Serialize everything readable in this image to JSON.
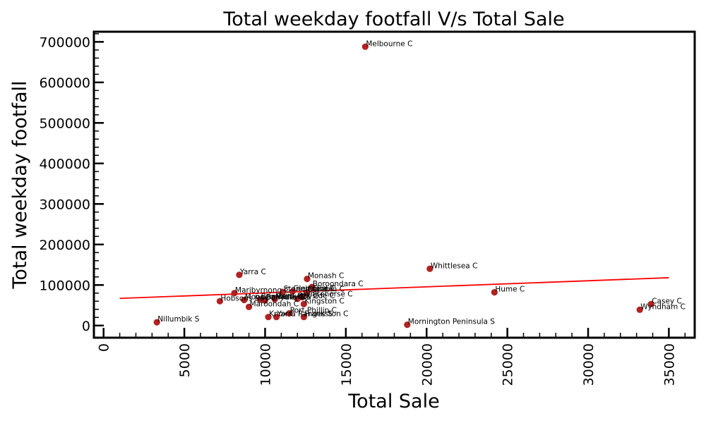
{
  "chart_data": {
    "type": "scatter",
    "title": "Total weekday footfall V/s Total Sale",
    "xlabel": "Total Sale",
    "ylabel": "Total weekday footfall",
    "xlim": [
      -600,
      36600
    ],
    "ylim": [
      -30000,
      725000
    ],
    "xticks": [
      0,
      5000,
      10000,
      15000,
      20000,
      25000,
      30000,
      35000
    ],
    "yticks": [
      0,
      100000,
      200000,
      300000,
      400000,
      500000,
      600000,
      700000
    ],
    "grid": false,
    "point_color": "#b22222",
    "trend_color": "#ff0000",
    "trendline": {
      "x": [
        1000,
        35000
      ],
      "y": [
        67000,
        118000
      ]
    },
    "points": [
      {
        "label": "Melbourne C",
        "x": 16200,
        "y": 688000
      },
      {
        "label": "Whittlesea C",
        "x": 20200,
        "y": 140000
      },
      {
        "label": "Yarra C",
        "x": 8400,
        "y": 125000
      },
      {
        "label": "Monash C",
        "x": 12600,
        "y": 115000
      },
      {
        "label": "Boroondara C",
        "x": 12900,
        "y": 95000
      },
      {
        "label": "Hume C",
        "x": 24200,
        "y": 82000
      },
      {
        "label": "Maribyrnong C",
        "x": 8100,
        "y": 80000
      },
      {
        "label": "Stonnington C",
        "x": 11100,
        "y": 83000
      },
      {
        "label": "Glen Eira C",
        "x": 11700,
        "y": 84000
      },
      {
        "label": "Darebin C",
        "x": 12600,
        "y": 82000
      },
      {
        "label": "Whitehorse C",
        "x": 12300,
        "y": 70000
      },
      {
        "label": "Bayside C",
        "x": 12000,
        "y": 66000
      },
      {
        "label": "Moonee Valley C",
        "x": 8700,
        "y": 63000
      },
      {
        "label": "Brimbank C",
        "x": 9700,
        "y": 64000
      },
      {
        "label": "Banyule C",
        "x": 10000,
        "y": 62000
      },
      {
        "label": "Merri-bek C",
        "x": 10600,
        "y": 65000
      },
      {
        "label": "Hobsons Bay C",
        "x": 7200,
        "y": 60000
      },
      {
        "label": "Kingston C",
        "x": 12400,
        "y": 53000
      },
      {
        "label": "Maroondah C",
        "x": 9000,
        "y": 46000
      },
      {
        "label": "Casey C",
        "x": 33900,
        "y": 53000
      },
      {
        "label": "Wyndham C",
        "x": 33200,
        "y": 39000
      },
      {
        "label": "Port Phillip C",
        "x": 11500,
        "y": 30000
      },
      {
        "label": "Knox C",
        "x": 10200,
        "y": 21000
      },
      {
        "label": "Yarra Ranges S",
        "x": 10700,
        "y": 21000
      },
      {
        "label": "Frankston C",
        "x": 12400,
        "y": 21000
      },
      {
        "label": "Nillumbik S",
        "x": 3300,
        "y": 8000
      },
      {
        "label": "Mornington Peninsula S",
        "x": 18800,
        "y": 2000
      }
    ]
  }
}
